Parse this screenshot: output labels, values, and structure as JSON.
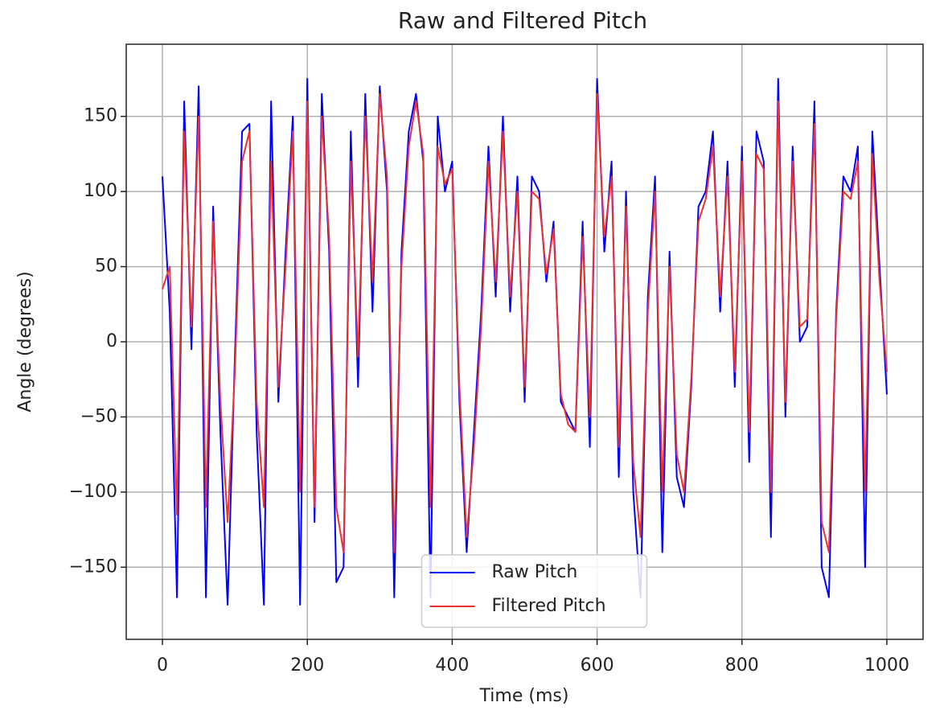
{
  "chart_data": {
    "type": "line",
    "title": "Raw and Filtered Pitch",
    "x_label": "Time (ms)",
    "y_label": "Angle (degrees)",
    "x": [
      0,
      10,
      20,
      30,
      40,
      50,
      60,
      70,
      80,
      90,
      100,
      110,
      120,
      130,
      140,
      150,
      160,
      170,
      180,
      190,
      200,
      210,
      220,
      230,
      240,
      250,
      260,
      270,
      280,
      290,
      300,
      310,
      320,
      330,
      340,
      350,
      360,
      370,
      380,
      390,
      400,
      410,
      420,
      430,
      440,
      450,
      460,
      470,
      480,
      490,
      500,
      510,
      520,
      530,
      540,
      550,
      560,
      570,
      580,
      590,
      600,
      610,
      620,
      630,
      640,
      650,
      660,
      670,
      680,
      690,
      700,
      710,
      720,
      730,
      740,
      750,
      760,
      770,
      780,
      790,
      800,
      810,
      820,
      830,
      840,
      850,
      860,
      870,
      880,
      890,
      900,
      910,
      920,
      930,
      940,
      950,
      960,
      970,
      980,
      990,
      1000
    ],
    "series": [
      {
        "name": "Raw Pitch",
        "color": "#0000ff",
        "values": [
          110,
          20,
          -170,
          160,
          -5,
          170,
          -170,
          90,
          -60,
          -175,
          -10,
          140,
          145,
          -60,
          -175,
          160,
          -40,
          60,
          150,
          -175,
          175,
          -120,
          165,
          60,
          -160,
          -150,
          140,
          -30,
          165,
          20,
          170,
          100,
          -170,
          60,
          140,
          165,
          120,
          -170,
          150,
          100,
          120,
          -40,
          -140,
          -60,
          20,
          130,
          30,
          150,
          20,
          110,
          -40,
          110,
          100,
          40,
          80,
          -40,
          -50,
          -60,
          80,
          -70,
          175,
          60,
          120,
          -90,
          100,
          -100,
          -170,
          30,
          110,
          -140,
          60,
          -90,
          -110,
          -30,
          90,
          100,
          140,
          20,
          120,
          -30,
          130,
          -80,
          140,
          120,
          -130,
          175,
          -50,
          130,
          0,
          10,
          160,
          -150,
          -170,
          20,
          110,
          100,
          130,
          -150,
          140,
          50,
          -35
        ]
      },
      {
        "name": "Filtered Pitch",
        "color": "#ee3030",
        "values": [
          35,
          50,
          -115,
          140,
          10,
          150,
          -110,
          80,
          -40,
          -120,
          -20,
          120,
          140,
          -40,
          -110,
          120,
          -30,
          50,
          140,
          -100,
          160,
          -110,
          150,
          70,
          -110,
          -140,
          120,
          -10,
          150,
          40,
          165,
          110,
          -140,
          50,
          130,
          160,
          125,
          -110,
          130,
          105,
          115,
          -30,
          -130,
          -70,
          10,
          120,
          40,
          140,
          30,
          100,
          -30,
          100,
          95,
          45,
          75,
          -35,
          -55,
          -60,
          70,
          -50,
          165,
          70,
          110,
          -70,
          90,
          -80,
          -130,
          20,
          100,
          -100,
          50,
          -75,
          -100,
          -25,
          80,
          95,
          130,
          30,
          110,
          -20,
          120,
          -60,
          125,
          115,
          -100,
          160,
          -40,
          120,
          10,
          15,
          145,
          -120,
          -140,
          15,
          100,
          95,
          120,
          -100,
          125,
          40,
          -20
        ]
      }
    ],
    "xlim": [
      -50,
      1050
    ],
    "ylim": [
      -198,
      198
    ],
    "xticks": [
      0,
      200,
      400,
      600,
      800,
      1000
    ],
    "yticks": [
      {
        "value": -150,
        "label": "−150"
      },
      {
        "value": -100,
        "label": "−100"
      },
      {
        "value": -50,
        "label": "−50"
      },
      0,
      50,
      100,
      150
    ],
    "grid": true,
    "legend": "lower center"
  }
}
